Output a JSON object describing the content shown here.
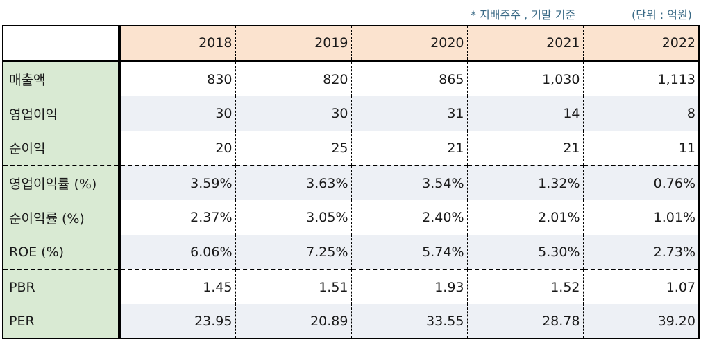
{
  "note": {
    "basis": "* 지배주주 , 기말 기준",
    "unit": "(단위 : 억원)"
  },
  "table": {
    "corner": "",
    "years": [
      "2018",
      "2019",
      "2020",
      "2021",
      "2022"
    ],
    "rows": [
      {
        "label": "매출액",
        "values": [
          "830",
          "820",
          "865",
          "1,030",
          "1,113"
        ]
      },
      {
        "label": "영업이익",
        "values": [
          "30",
          "30",
          "31",
          "14",
          "8"
        ]
      },
      {
        "label": "순이익",
        "values": [
          "20",
          "25",
          "21",
          "21",
          "11"
        ]
      },
      {
        "label": "영업이익률 (%)",
        "values": [
          "3.59%",
          "3.63%",
          "3.54%",
          "1.32%",
          "0.76%"
        ]
      },
      {
        "label": "순이익률 (%)",
        "values": [
          "2.37%",
          "3.05%",
          "2.40%",
          "2.01%",
          "1.01%"
        ]
      },
      {
        "label": "ROE (%)",
        "values": [
          "6.06%",
          "7.25%",
          "5.74%",
          "5.30%",
          "2.73%"
        ]
      },
      {
        "label": "PBR",
        "values": [
          "1.45",
          "1.51",
          "1.93",
          "1.52",
          "1.07"
        ]
      },
      {
        "label": "PER",
        "values": [
          "23.95",
          "20.89",
          "33.55",
          "28.78",
          "39.20"
        ]
      }
    ]
  },
  "colors": {
    "header_bg": "#fbe3cf",
    "label_bg": "#d9ead3",
    "alt_row_bg": "#edf0f5",
    "note_text": "#3a6a86",
    "border": "#000000"
  }
}
